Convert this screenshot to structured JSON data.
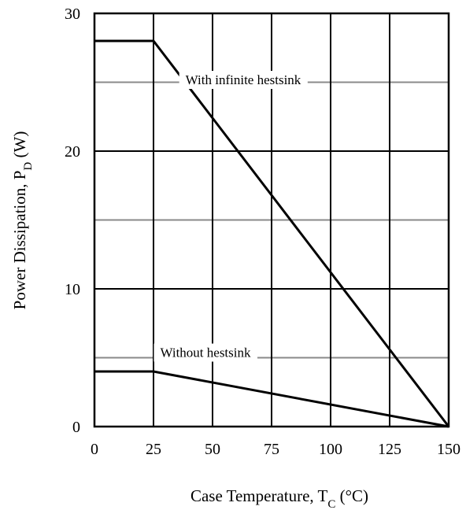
{
  "chart_data": {
    "type": "line",
    "title": "",
    "xlabel": {
      "main": "Case Temperature,  T",
      "sub": "C",
      "unit": " (°C)"
    },
    "ylabel": {
      "main": "Power Dissipation, P",
      "sub": "D",
      "unit": " (W)"
    },
    "xlim": [
      0,
      150
    ],
    "ylim": [
      0,
      30
    ],
    "x_ticks": [
      0,
      25,
      50,
      75,
      100,
      125,
      150
    ],
    "y_ticks": [
      0,
      10,
      20,
      30
    ],
    "x_tick_labels": [
      "0",
      "25",
      "50",
      "75",
      "100",
      "125",
      "150"
    ],
    "y_tick_labels": [
      "0",
      "10",
      "20",
      "30"
    ],
    "major_grid_y": [
      10,
      20
    ],
    "minor_grid_y": [
      5,
      15,
      25
    ],
    "grid": true,
    "series": [
      {
        "x": [
          0,
          25,
          150
        ],
        "y": [
          28,
          28,
          0
        ],
        "color": "#000000"
      },
      {
        "x": [
          0,
          25,
          150
        ],
        "y": [
          4,
          4,
          0
        ],
        "color": "#000000"
      }
    ],
    "annotations": [
      {
        "text": "With infinite hestsink",
        "x": 63,
        "y": 25.2
      },
      {
        "text": "Without hestsink",
        "x": 47,
        "y": 5.4
      }
    ]
  }
}
